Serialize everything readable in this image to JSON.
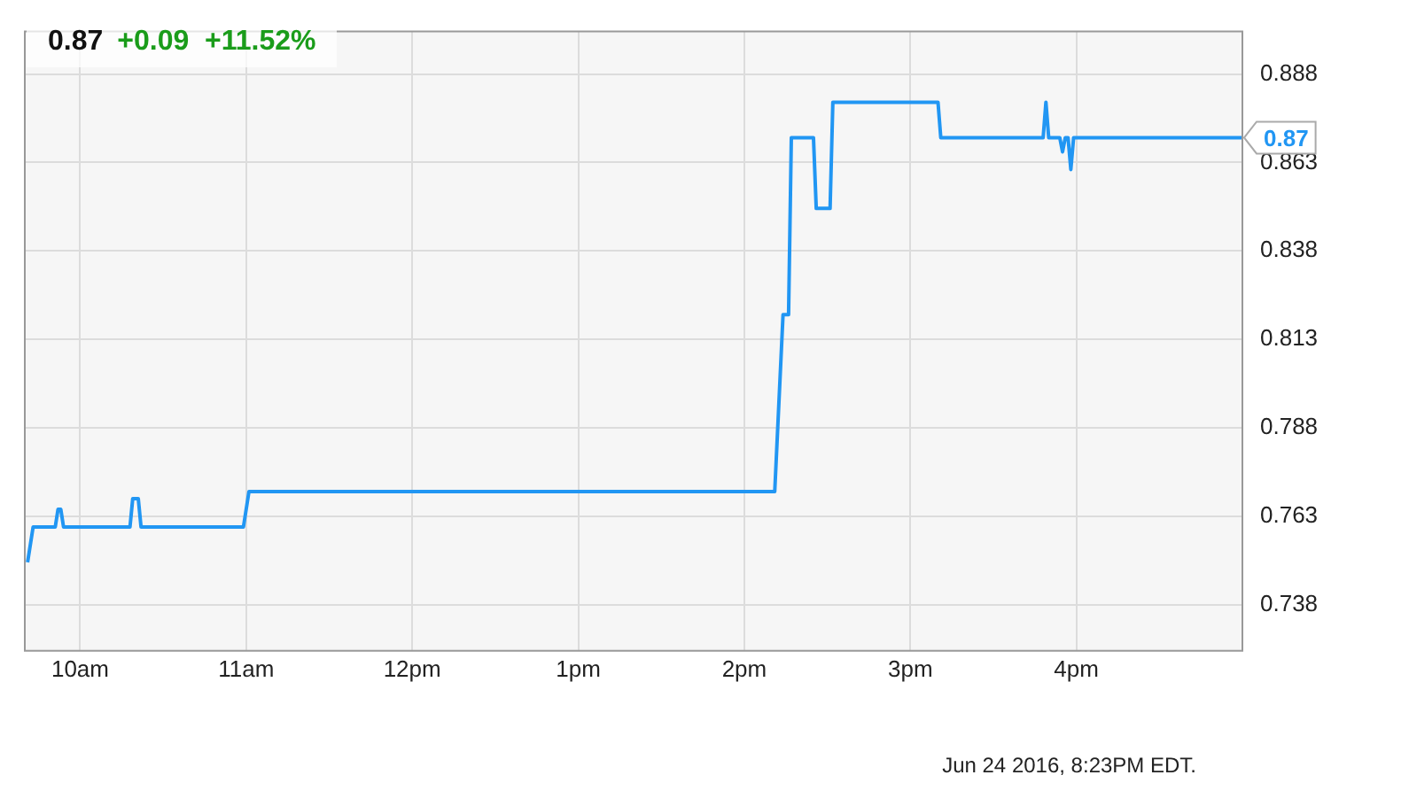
{
  "chart_data": {
    "type": "line",
    "title": "0.87",
    "subtitle": "+0.09  +11.52%",
    "annotations": [
      {
        "text": "0.87",
        "x": "2016-06-24T17:00",
        "y": 0.87
      },
      "Jun 24 2016, 8:23PM EDT."
    ],
    "x": [
      "2016-06-24T09:41",
      "2016-06-24T09:43",
      "2016-06-24T09:51",
      "2016-06-24T09:52",
      "2016-06-24T09:53",
      "2016-06-24T09:54",
      "2016-06-24T10:18",
      "2016-06-24T10:19",
      "2016-06-24T10:21",
      "2016-06-24T10:22",
      "2016-06-24T10:59",
      "2016-06-24T11:01",
      "2016-06-24T14:11",
      "2016-06-24T14:14",
      "2016-06-24T14:16",
      "2016-06-24T14:17",
      "2016-06-24T14:18",
      "2016-06-24T14:25",
      "2016-06-24T14:26",
      "2016-06-24T14:31",
      "2016-06-24T14:32",
      "2016-06-24T15:10",
      "2016-06-24T15:11",
      "2016-06-24T15:48",
      "2016-06-24T15:49",
      "2016-06-24T15:50",
      "2016-06-24T15:54",
      "2016-06-24T15:55",
      "2016-06-24T15:56",
      "2016-06-24T15:57",
      "2016-06-24T15:58",
      "2016-06-24T15:59",
      "2016-06-24T17:00"
    ],
    "series": [
      {
        "color": "#2196f3",
        "values": [
          0.75,
          0.76,
          0.76,
          0.765,
          0.765,
          0.76,
          0.76,
          0.768,
          0.768,
          0.76,
          0.76,
          0.77,
          0.77,
          0.82,
          0.82,
          0.87,
          0.87,
          0.87,
          0.85,
          0.85,
          0.88,
          0.88,
          0.87,
          0.87,
          0.88,
          0.87,
          0.87,
          0.866,
          0.87,
          0.87,
          0.861,
          0.87,
          0.87
        ]
      }
    ],
    "xlim": [
      "2016-06-24T09:40",
      "2016-06-24T17:00"
    ],
    "xticks": [
      {
        "value": "2016-06-24T10:00",
        "label": "10am"
      },
      {
        "value": "2016-06-24T11:00",
        "label": "11am"
      },
      {
        "value": "2016-06-24T12:00",
        "label": "12pm"
      },
      {
        "value": "2016-06-24T13:00",
        "label": "1pm"
      },
      {
        "value": "2016-06-24T14:00",
        "label": "2pm"
      },
      {
        "value": "2016-06-24T15:00",
        "label": "3pm"
      },
      {
        "value": "2016-06-24T16:00",
        "label": "4pm"
      }
    ],
    "ylim": [
      0.725,
      0.9
    ],
    "yticks": [
      0.738,
      0.763,
      0.788,
      0.813,
      0.838,
      0.863,
      0.888
    ],
    "grid": true,
    "legend": false,
    "marker": "none",
    "line_style": "solid"
  }
}
